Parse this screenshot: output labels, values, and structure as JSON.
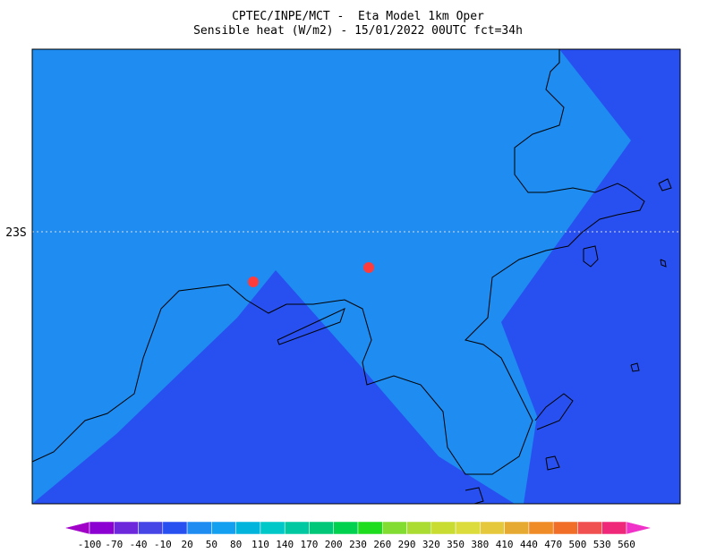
{
  "header": {
    "title_line1": "CPTEC/INPE/MCT -  Eta Model 1km Oper",
    "title_line2": "Sensible heat (W/m2) - 15/01/2022 00UTC fct=34h"
  },
  "map": {
    "lat_labels": [
      "23S"
    ]
  },
  "colorbar": {
    "labels": [
      -100,
      -70,
      -40,
      -10,
      20,
      50,
      80,
      110,
      140,
      170,
      200,
      230,
      260,
      290,
      320,
      350,
      380,
      410,
      440,
      470,
      500,
      530,
      560
    ],
    "colors": [
      "#a000c8",
      "#8c00d2",
      "#6e28dc",
      "#4646e6",
      "#2850f0",
      "#1e8cf0",
      "#14a0f0",
      "#00b4dc",
      "#00c8c8",
      "#00c8a0",
      "#00c878",
      "#00d250",
      "#1edc1e",
      "#82dc32",
      "#aadc32",
      "#c8dc32",
      "#dcdc3c",
      "#e6c83c",
      "#e6aa32",
      "#f08c28",
      "#f06e28",
      "#f05050",
      "#f0287a",
      "#f032c8"
    ]
  }
}
